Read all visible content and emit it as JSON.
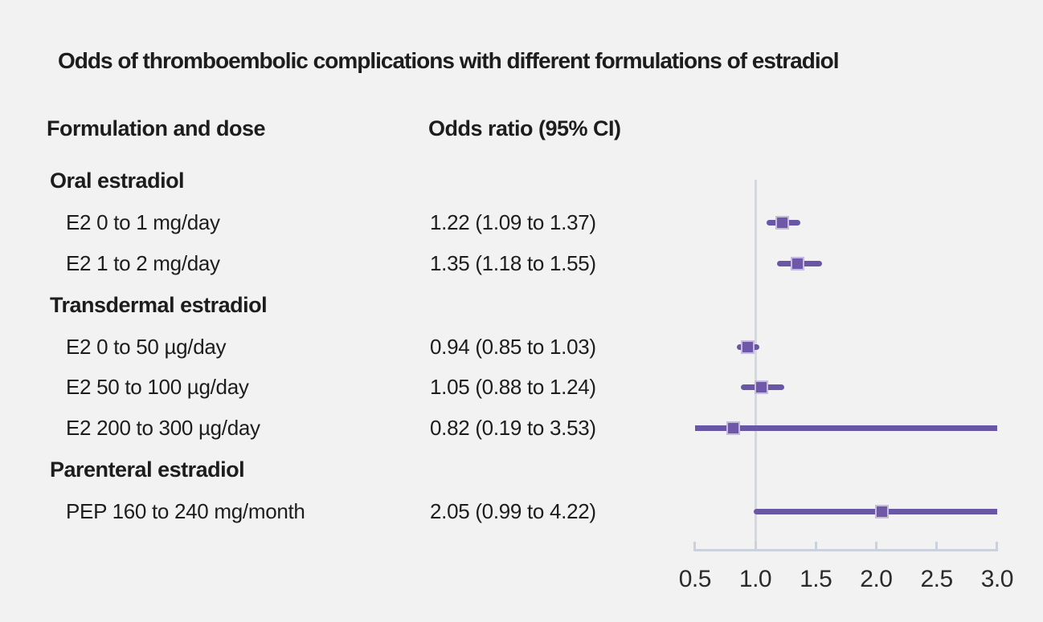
{
  "header": {
    "title": "Odds of thromboembolic complications with different formulations of estradiol"
  },
  "table": {
    "col_formulation": "Formulation and dose",
    "col_odds_ratio": "Odds ratio (95% CI)"
  },
  "colors": {
    "background": "#f2f2f2",
    "text": "#1d1d1d",
    "ci_line": "#6957a5",
    "marker_fill": "#7058a8",
    "marker_border": "#c7badf",
    "reference_line": "#d4d8e1",
    "axis_line": "#ccd2db",
    "tick_label": "#2b2b2b"
  },
  "chart_data": {
    "type": "forest",
    "title": "Odds of thromboembolic complications with different formulations of estradiol",
    "xlabel": "",
    "ylabel": "",
    "x_axis": {
      "min": 0.5,
      "max": 3.0,
      "tick_labels": [
        "0.5",
        "1.0",
        "1.5",
        "2.0",
        "2.5",
        "3.0"
      ],
      "tick_values": [
        0.5,
        1.0,
        1.5,
        2.0,
        2.5,
        3.0
      ],
      "reference_line": 1.0
    },
    "rows": [
      {
        "kind": "group",
        "label": "Oral estradiol"
      },
      {
        "kind": "item",
        "label": "E2 0 to 1 mg/day",
        "or_text": "1.22 (1.09 to 1.37)",
        "or": 1.22,
        "ci_low": 1.09,
        "ci_high": 1.37
      },
      {
        "kind": "item",
        "label": "E2 1 to 2 mg/day",
        "or_text": "1.35 (1.18 to 1.55)",
        "or": 1.35,
        "ci_low": 1.18,
        "ci_high": 1.55
      },
      {
        "kind": "group",
        "label": "Transdermal estradiol"
      },
      {
        "kind": "item",
        "label": "E2 0 to 50 µg/day",
        "or_text": "0.94 (0.85 to 1.03)",
        "or": 0.94,
        "ci_low": 0.85,
        "ci_high": 1.03
      },
      {
        "kind": "item",
        "label": "E2 50 to 100 µg/day",
        "or_text": "1.05 (0.88 to 1.24)",
        "or": 1.05,
        "ci_low": 0.88,
        "ci_high": 1.24
      },
      {
        "kind": "item",
        "label": "E2 200 to 300 µg/day",
        "or_text": "0.82 (0.19 to 3.53)",
        "or": 0.82,
        "ci_low": 0.19,
        "ci_high": 3.53
      },
      {
        "kind": "group",
        "label": "Parenteral estradiol"
      },
      {
        "kind": "item",
        "label": "PEP 160 to 240 mg/month",
        "or_text": "2.05 (0.99 to 4.22)",
        "or": 2.05,
        "ci_low": 0.99,
        "ci_high": 4.22
      }
    ]
  }
}
